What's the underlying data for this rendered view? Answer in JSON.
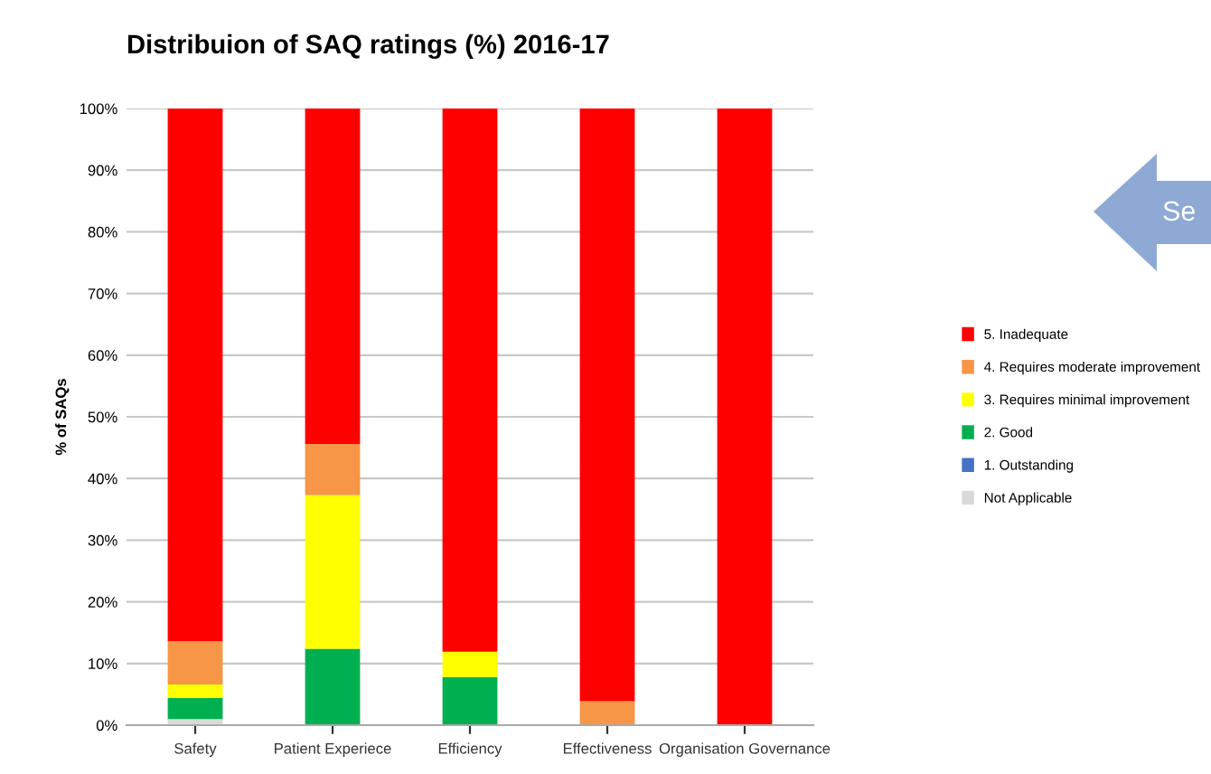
{
  "chart_data": {
    "type": "bar",
    "stacked": true,
    "title": "Distribuion of SAQ ratings (%) 2016-17",
    "ylabel": "% of SAQs",
    "categories": [
      "Safety",
      "Patient Experiece",
      "Efficiency",
      "Effectiveness",
      "Organisation Governance"
    ],
    "series": [
      {
        "name": "Not Applicable",
        "color": "#d9d9d9",
        "values": [
          1.0,
          0,
          0,
          0,
          0
        ]
      },
      {
        "name": "1. Outstanding",
        "color": "#4472c4",
        "values": [
          0,
          0,
          0,
          0,
          0
        ]
      },
      {
        "name": "2. Good",
        "color": "#00b050",
        "values": [
          3.4,
          12.4,
          7.8,
          0,
          0
        ]
      },
      {
        "name": "3. Requires minimal improvement",
        "color": "#ffff00",
        "values": [
          2.2,
          24.9,
          4.1,
          0,
          0
        ]
      },
      {
        "name": "4. Requires moderate improvement",
        "color": "#f79646",
        "values": [
          7.0,
          8.3,
          0,
          3.9,
          0
        ]
      },
      {
        "name": "5. Inadequate",
        "color": "#ff0000",
        "values": [
          86.4,
          54.4,
          88.1,
          96.1,
          100
        ]
      }
    ],
    "ylim": [
      0,
      100
    ],
    "yticks": [
      {
        "value": 0,
        "label": "0%"
      },
      {
        "value": 10,
        "label": "10%"
      },
      {
        "value": 20,
        "label": "20%"
      },
      {
        "value": 30,
        "label": "30%"
      },
      {
        "value": 40,
        "label": "40%"
      },
      {
        "value": 50,
        "label": "50%"
      },
      {
        "value": 60,
        "label": "60%"
      },
      {
        "value": 70,
        "label": "70%"
      },
      {
        "value": 80,
        "label": "80%"
      },
      {
        "value": 90,
        "label": "90%"
      },
      {
        "value": 100,
        "label": "100%"
      }
    ],
    "grid": "y",
    "legend": "right",
    "annotations": [
      "Se"
    ]
  }
}
